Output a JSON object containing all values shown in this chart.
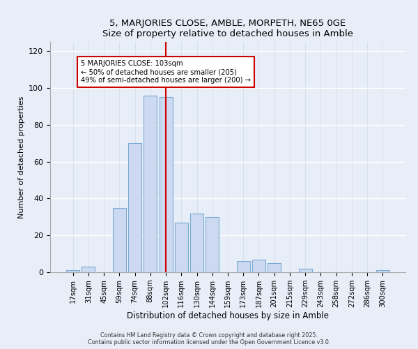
{
  "title": "5, MARJORIES CLOSE, AMBLE, MORPETH, NE65 0GE",
  "subtitle": "Size of property relative to detached houses in Amble",
  "xlabel": "Distribution of detached houses by size in Amble",
  "ylabel": "Number of detached properties",
  "bar_labels": [
    "17sqm",
    "31sqm",
    "45sqm",
    "59sqm",
    "74sqm",
    "88sqm",
    "102sqm",
    "116sqm",
    "130sqm",
    "144sqm",
    "159sqm",
    "173sqm",
    "187sqm",
    "201sqm",
    "215sqm",
    "229sqm",
    "243sqm",
    "258sqm",
    "272sqm",
    "286sqm",
    "300sqm"
  ],
  "bar_values": [
    1,
    3,
    0,
    35,
    70,
    96,
    95,
    27,
    32,
    30,
    0,
    6,
    7,
    5,
    0,
    2,
    0,
    0,
    0,
    0,
    1
  ],
  "bar_color": "#ccd9f0",
  "bar_edge_color": "#7aaad4",
  "vline_x_index": 6,
  "vline_color": "#cc0000",
  "annotation_text": "5 MARJORIES CLOSE: 103sqm\n← 50% of detached houses are smaller (205)\n49% of semi-detached houses are larger (200) →",
  "annotation_box_color": "#ffffff",
  "annotation_border_color": "#cc0000",
  "ylim": [
    0,
    125
  ],
  "yticks": [
    0,
    20,
    40,
    60,
    80,
    100,
    120
  ],
  "footer_line1": "Contains HM Land Registry data © Crown copyright and database right 2025.",
  "footer_line2": "Contains public sector information licensed under the Open Government Licence v3.0.",
  "bg_color": "#e8eef8",
  "plot_bg_color": "#e8eef8"
}
